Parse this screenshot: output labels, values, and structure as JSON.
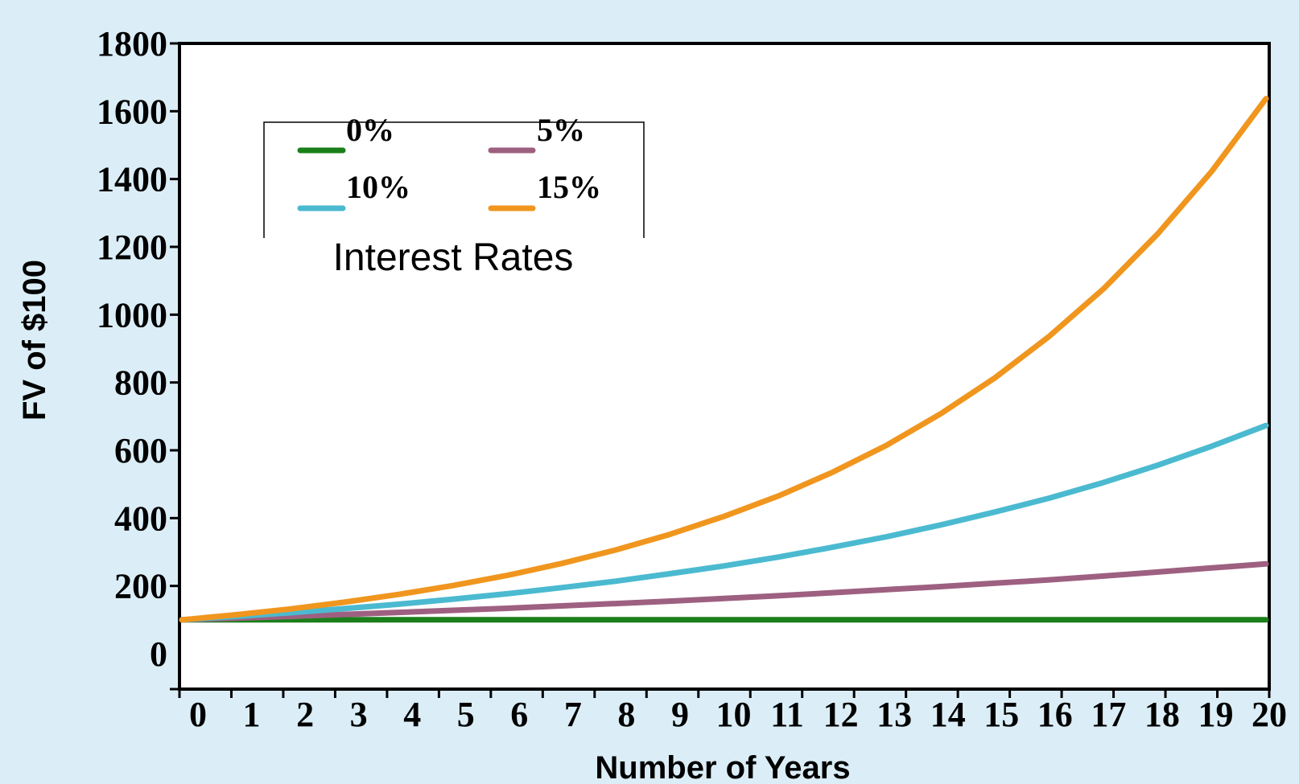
{
  "chart_data": {
    "type": "line",
    "xlabel": "Number of Years",
    "ylabel": "FV of $100",
    "x": [
      0,
      1,
      2,
      3,
      4,
      5,
      6,
      7,
      8,
      9,
      10,
      11,
      12,
      13,
      14,
      15,
      16,
      17,
      18,
      19,
      20
    ],
    "x_tick_labels": [
      "0",
      "1",
      "2",
      "3",
      "4",
      "5",
      "6",
      "7",
      "8",
      "9",
      "10",
      "11",
      "12",
      "13",
      "14",
      "15",
      "16",
      "17",
      "18",
      "19",
      "20"
    ],
    "xlim": [
      0,
      20
    ],
    "ylim": [
      -100,
      1800
    ],
    "y_ticks": [
      0,
      200,
      400,
      600,
      800,
      1000,
      1200,
      1400,
      1600,
      1800
    ],
    "y_tick_labels": [
      "0",
      "200",
      "400",
      "600",
      "800",
      "1000",
      "1200",
      "1400",
      "1600",
      "1800"
    ],
    "grid": false,
    "legend": {
      "title": "Interest Rates",
      "placement": "top-left",
      "columns": 2
    },
    "series": [
      {
        "name": "0%",
        "color": "#1a7f1a",
        "values": [
          100,
          100,
          100,
          100,
          100,
          100,
          100,
          100,
          100,
          100,
          100,
          100,
          100,
          100,
          100,
          100,
          100,
          100,
          100,
          100,
          100
        ]
      },
      {
        "name": "5%",
        "color": "#9e6080",
        "values": [
          100,
          105,
          110,
          116,
          122,
          128,
          134,
          141,
          148,
          155,
          163,
          171,
          180,
          189,
          198,
          208,
          218,
          229,
          241,
          253,
          265
        ]
      },
      {
        "name": "10%",
        "color": "#4bbad0",
        "values": [
          100,
          110,
          121,
          133,
          146,
          161,
          177,
          195,
          214,
          236,
          259,
          285,
          314,
          345,
          380,
          418,
          459,
          505,
          556,
          612,
          673
        ]
      },
      {
        "name": "15%",
        "color": "#f0961e",
        "values": [
          100,
          115,
          132,
          152,
          175,
          201,
          231,
          266,
          306,
          352,
          405,
          465,
          535,
          615,
          708,
          814,
          936,
          1076,
          1238,
          1423,
          1637
        ]
      }
    ]
  }
}
